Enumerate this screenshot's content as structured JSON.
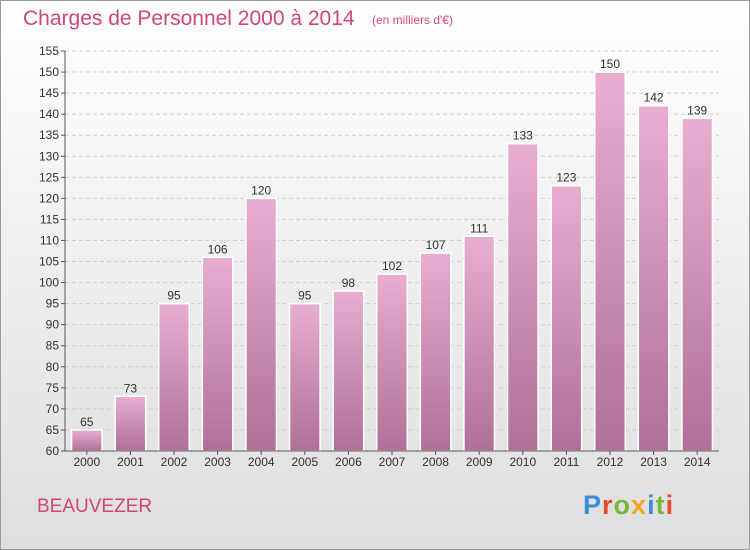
{
  "header": {
    "title": "Charges de Personnel 2000 à 2014",
    "subtitle": "(en milliers d'€)"
  },
  "footer": {
    "commune": "BEAUVEZER",
    "logo": {
      "text": "Proxiti",
      "letters": [
        {
          "ch": "P",
          "color": "#3a8fd6"
        },
        {
          "ch": "r",
          "color": "#e8482f"
        },
        {
          "ch": "o",
          "color": "#79b83a"
        },
        {
          "ch": "x",
          "color": "#f2a71b"
        },
        {
          "ch": "i",
          "color": "#3a8fd6"
        },
        {
          "ch": "t",
          "color": "#79b83a"
        },
        {
          "ch": "i",
          "color": "#e8482f"
        }
      ]
    }
  },
  "colors": {
    "bar_top": "#e8aed1",
    "bar_bottom": "#b06f98",
    "accent": "#d0457c"
  },
  "chart_data": {
    "type": "bar",
    "title": "Charges de Personnel 2000 à 2014",
    "subtitle": "(en milliers d'€)",
    "categories": [
      "2000",
      "2001",
      "2002",
      "2003",
      "2004",
      "2005",
      "2006",
      "2007",
      "2008",
      "2009",
      "2010",
      "2011",
      "2012",
      "2013",
      "2014"
    ],
    "values": [
      65,
      73,
      95,
      106,
      120,
      95,
      98,
      102,
      107,
      111,
      133,
      123,
      150,
      142,
      139
    ],
    "ylim": [
      60,
      155
    ],
    "yticks": [
      60,
      65,
      70,
      75,
      80,
      85,
      90,
      95,
      100,
      105,
      110,
      115,
      120,
      125,
      130,
      135,
      140,
      145,
      150,
      155
    ],
    "grid": true,
    "xlabel": "",
    "ylabel": ""
  }
}
